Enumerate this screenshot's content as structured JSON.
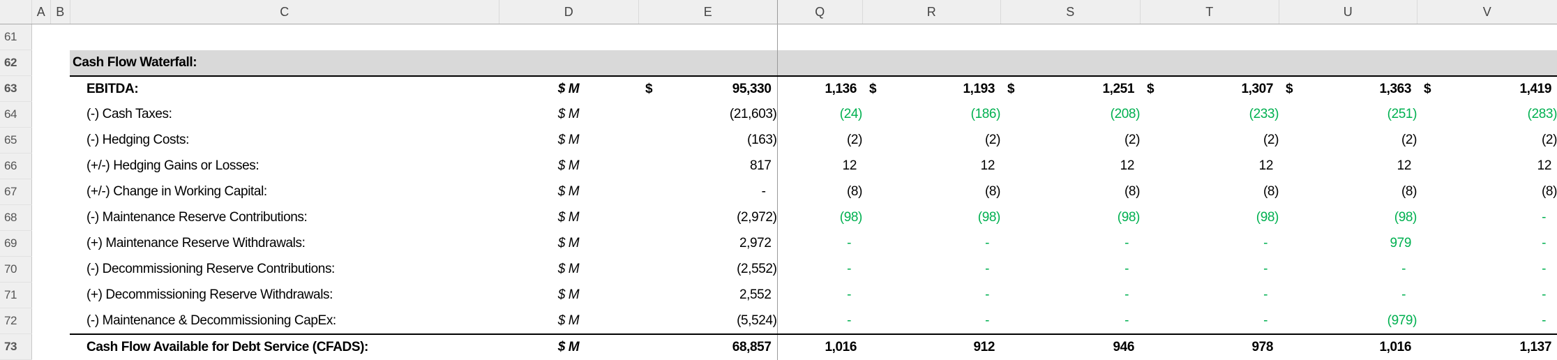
{
  "columns": [
    "A",
    "B",
    "C",
    "D",
    "E",
    "Q",
    "R",
    "S",
    "T",
    "U",
    "V"
  ],
  "colors": {
    "negative_flow": "#00B050",
    "section_fill": "#d9d9d9"
  },
  "rows": [
    {
      "num": "61",
      "label": "",
      "unit": "",
      "dollar": false,
      "e": "",
      "vals": [
        "",
        "",
        "",
        "",
        "",
        ""
      ],
      "green": false,
      "bold": false,
      "type": "blank"
    },
    {
      "num": "62",
      "label": "Cash Flow Waterfall:",
      "unit": "",
      "dollar": false,
      "e": "",
      "vals": [
        "",
        "",
        "",
        "",
        "",
        ""
      ],
      "green": false,
      "bold": true,
      "type": "section"
    },
    {
      "num": "63",
      "label": "EBITDA:",
      "unit": "$ M",
      "dollar": true,
      "e": "95,330",
      "vals": [
        "1,136",
        "1,193",
        "1,251",
        "1,307",
        "1,363",
        "1,419"
      ],
      "green": false,
      "bold": true,
      "type": "topline"
    },
    {
      "num": "64",
      "label": "(-) Cash Taxes:",
      "unit": "$ M",
      "dollar": false,
      "e": "(21,603)",
      "vals": [
        "(24)",
        "(186)",
        "(208)",
        "(233)",
        "(251)",
        "(283)"
      ],
      "green": true,
      "bold": false,
      "type": "item"
    },
    {
      "num": "65",
      "label": "(-) Hedging Costs:",
      "unit": "$ M",
      "dollar": false,
      "e": "(163)",
      "vals": [
        "(2)",
        "(2)",
        "(2)",
        "(2)",
        "(2)",
        "(2)"
      ],
      "green": false,
      "bold": false,
      "type": "item"
    },
    {
      "num": "66",
      "label": "(+/-) Hedging Gains or Losses:",
      "unit": "$ M",
      "dollar": false,
      "e": "817",
      "vals": [
        "12",
        "12",
        "12",
        "12",
        "12",
        "12"
      ],
      "green": false,
      "bold": false,
      "type": "item"
    },
    {
      "num": "67",
      "label": "(+/-) Change in Working Capital:",
      "unit": "$ M",
      "dollar": false,
      "e": "-",
      "vals": [
        "(8)",
        "(8)",
        "(8)",
        "(8)",
        "(8)",
        "(8)"
      ],
      "green": false,
      "bold": false,
      "type": "item"
    },
    {
      "num": "68",
      "label": "(-) Maintenance Reserve Contributions:",
      "unit": "$ M",
      "dollar": false,
      "e": "(2,972)",
      "vals": [
        "(98)",
        "(98)",
        "(98)",
        "(98)",
        "(98)",
        "-"
      ],
      "green": true,
      "bold": false,
      "type": "item"
    },
    {
      "num": "69",
      "label": "(+) Maintenance Reserve Withdrawals:",
      "unit": "$ M",
      "dollar": false,
      "e": "2,972",
      "vals": [
        "-",
        "-",
        "-",
        "-",
        "979",
        "-"
      ],
      "green": true,
      "bold": false,
      "type": "item"
    },
    {
      "num": "70",
      "label": "(-) Decommissioning Reserve Contributions:",
      "unit": "$ M",
      "dollar": false,
      "e": "(2,552)",
      "vals": [
        "-",
        "-",
        "-",
        "-",
        "-",
        "-"
      ],
      "green": true,
      "bold": false,
      "type": "item"
    },
    {
      "num": "71",
      "label": "(+) Decommissioning Reserve Withdrawals:",
      "unit": "$ M",
      "dollar": false,
      "e": "2,552",
      "vals": [
        "-",
        "-",
        "-",
        "-",
        "-",
        "-"
      ],
      "green": true,
      "bold": false,
      "type": "item"
    },
    {
      "num": "72",
      "label": "(-) Maintenance & Decommissioning CapEx:",
      "unit": "$ M",
      "dollar": false,
      "e": "(5,524)",
      "vals": [
        "-",
        "-",
        "-",
        "-",
        "(979)",
        "-"
      ],
      "green": true,
      "bold": false,
      "type": "r72"
    },
    {
      "num": "73",
      "label": "Cash Flow Available for Debt Service (CFADS):",
      "unit": "$ M",
      "dollar": false,
      "e": "68,857",
      "vals": [
        "1,016",
        "912",
        "946",
        "978",
        "1,016",
        "1,137"
      ],
      "green": false,
      "bold": true,
      "type": "total"
    }
  ],
  "dollar_sign": "$"
}
